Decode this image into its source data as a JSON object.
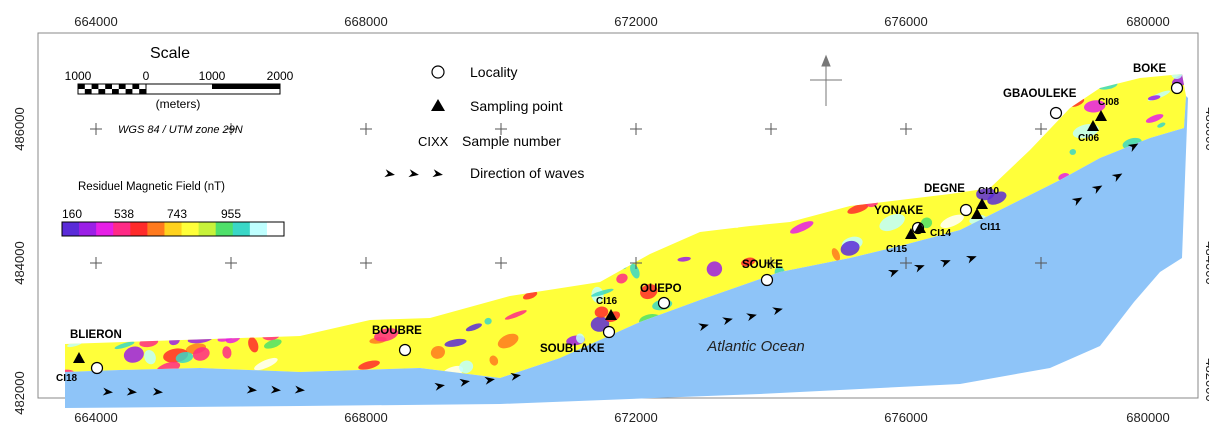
{
  "map": {
    "x_ticks": [
      "664000",
      "668000",
      "672000",
      "676000",
      "680000"
    ],
    "y_ticks": [
      "486000",
      "484000",
      "482000"
    ],
    "scale": {
      "title": "Scale",
      "labels": [
        "1000",
        "0",
        "1000",
        "2000"
      ],
      "unit": "(meters)",
      "crs": "WGS 84 / UTM zone 29N"
    },
    "colorbar": {
      "title": "Residuel Magnetic Field (nT)",
      "ticks": [
        "160",
        "538",
        "743",
        "955"
      ],
      "colors": [
        "#5a2bd8",
        "#9b1fe6",
        "#e61fe6",
        "#ff2a86",
        "#ff2b2b",
        "#ff7a1e",
        "#ffd21e",
        "#ffff3a",
        "#c7f23a",
        "#4fe06a",
        "#3ad7c7",
        "#bfffff",
        "#ffffff"
      ]
    },
    "legend": {
      "locality": "Locality",
      "sampling_point": "Sampling point",
      "sample_symbol": "CIXX",
      "sample_number": "Sample number",
      "waves": "Direction of waves"
    },
    "ocean_label": "Atlantic Ocean",
    "localities": [
      "BLIERON",
      "BOUBRE",
      "SOUBLAKE",
      "OUEPO",
      "SOUKE",
      "YONAKE",
      "DEGNE",
      "GBAOULEKE",
      "BOKE"
    ],
    "samples": [
      "CI18",
      "CI16",
      "CI15",
      "CI14",
      "CI10",
      "CI11",
      "CI06",
      "CI08"
    ],
    "colors": {
      "ocean": "#8ec4f8",
      "land_base": "#ffff3a"
    }
  }
}
